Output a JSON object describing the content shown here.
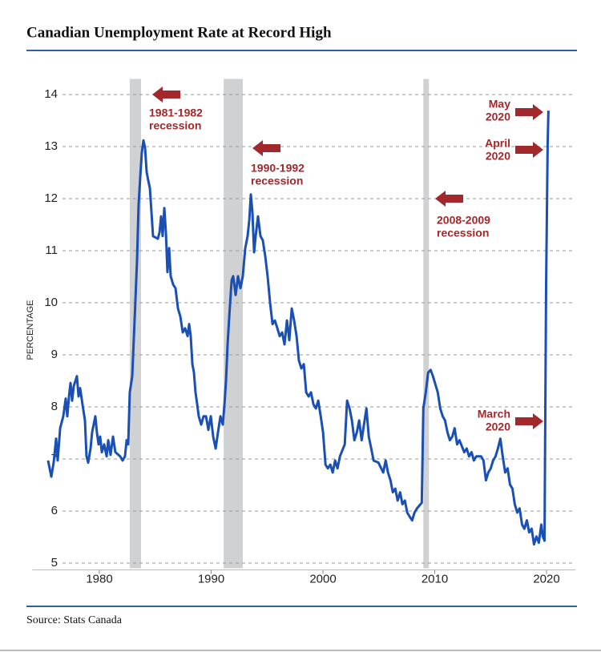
{
  "chart_data": {
    "type": "line",
    "title": "Canadian Unemployment Rate at Record High",
    "y_label": "PERCENTAGE",
    "source": "Source: Stats Canada",
    "color": "#1a4fb3",
    "grid": true,
    "xlim": [
      1974,
      2022.6
    ],
    "xticks": [
      1980,
      1990,
      2000,
      2010,
      2020
    ],
    "ylim": [
      4.9,
      14.3
    ],
    "yticks": [
      5,
      6,
      7,
      8,
      9,
      10,
      11,
      12,
      13,
      14
    ],
    "recessions": [
      [
        1982.72,
        1983.73
      ],
      [
        1991.12,
        1992.83
      ],
      [
        2008.98,
        2009.48
      ]
    ],
    "annotations": [
      [
        "1981-1982",
        "recession"
      ],
      [
        "1990-1992",
        "recession"
      ],
      [
        "2008-2009",
        "recession"
      ],
      [
        "May",
        "2020"
      ],
      [
        "April",
        "2020"
      ],
      [
        "March",
        "2020"
      ]
    ],
    "x": [
      1975.41,
      1975.7,
      1975.91,
      1976.13,
      1976.27,
      1976.49,
      1976.77,
      1976.99,
      1977.13,
      1977.28,
      1977.42,
      1977.56,
      1977.71,
      1977.99,
      1978.14,
      1978.28,
      1978.49,
      1978.71,
      1978.85,
      1979.0,
      1979.21,
      1979.35,
      1979.64,
      1979.78,
      1979.93,
      1980.07,
      1980.22,
      1980.43,
      1980.65,
      1980.79,
      1981.0,
      1981.22,
      1981.43,
      1981.86,
      1982.08,
      1982.29,
      1982.44,
      1982.58,
      1982.72,
      1982.94,
      1983.15,
      1983.37,
      1983.51,
      1983.66,
      1983.8,
      1983.94,
      1984.09,
      1984.23,
      1984.37,
      1984.52,
      1984.66,
      1984.8,
      1985.23,
      1985.38,
      1985.52,
      1985.66,
      1985.81,
      1985.95,
      1986.09,
      1986.24,
      1986.38,
      1986.6,
      1986.81,
      1987.03,
      1987.24,
      1987.46,
      1987.67,
      1987.89,
      1988.03,
      1988.17,
      1988.32,
      1988.46,
      1988.6,
      1988.75,
      1988.89,
      1989.11,
      1989.32,
      1989.54,
      1989.75,
      1989.97,
      1990.18,
      1990.4,
      1990.61,
      1990.83,
      1991.04,
      1991.19,
      1991.33,
      1991.47,
      1991.62,
      1991.83,
      1991.97,
      1992.19,
      1992.4,
      1992.62,
      1992.83,
      1993.05,
      1993.26,
      1993.41,
      1993.55,
      1993.69,
      1993.84,
      1993.98,
      1994.19,
      1994.41,
      1994.62,
      1994.84,
      1995.05,
      1995.27,
      1995.49,
      1995.7,
      1995.92,
      1996.13,
      1996.35,
      1996.56,
      1996.78,
      1996.99,
      1997.21,
      1997.42,
      1997.64,
      1997.85,
      1998.07,
      1998.29,
      1998.5,
      1998.72,
      1998.93,
      1999.15,
      1999.37,
      1999.58,
      1999.8,
      2000.01,
      2000.23,
      2000.44,
      2000.66,
      2000.87,
      2001.09,
      2001.3,
      2001.52,
      2001.95,
      2002.16,
      2002.38,
      2002.59,
      2002.81,
      2003.03,
      2003.24,
      2003.46,
      2003.67,
      2003.89,
      2004.1,
      2004.32,
      2004.53,
      2004.96,
      2005.39,
      2005.61,
      2005.82,
      2006.04,
      2006.25,
      2006.47,
      2006.68,
      2006.9,
      2007.11,
      2007.33,
      2007.54,
      2007.76,
      2007.98,
      2008.19,
      2008.41,
      2008.84,
      2008.98,
      2009.2,
      2009.41,
      2009.63,
      2009.84,
      2010.06,
      2010.27,
      2010.49,
      2010.71,
      2010.92,
      2011.14,
      2011.35,
      2011.57,
      2011.78,
      2012.0,
      2012.21,
      2012.64,
      2012.86,
      2013.07,
      2013.29,
      2013.5,
      2013.72,
      2014.15,
      2014.36,
      2014.58,
      2014.79,
      2015.01,
      2015.22,
      2015.44,
      2015.65,
      2015.87,
      2016.08,
      2016.3,
      2016.52,
      2016.73,
      2016.95,
      2017.16,
      2017.38,
      2017.59,
      2017.81,
      2018.02,
      2018.24,
      2018.45,
      2018.67,
      2018.88,
      2019.1,
      2019.31,
      2019.53,
      2019.67,
      2019.82,
      2019.96,
      2020.1,
      2020.17
    ],
    "values": [
      6.97,
      6.66,
      6.93,
      7.39,
      6.97,
      7.59,
      7.82,
      8.16,
      7.82,
      8.2,
      8.46,
      8.12,
      8.4,
      8.59,
      8.2,
      8.36,
      8.05,
      7.74,
      7.05,
      6.93,
      7.2,
      7.51,
      7.82,
      7.51,
      7.28,
      7.43,
      7.13,
      7.28,
      7.05,
      7.36,
      7.08,
      7.43,
      7.13,
      7.05,
      6.97,
      7.05,
      7.36,
      7.28,
      8.28,
      8.59,
      9.66,
      10.82,
      11.89,
      12.43,
      12.89,
      13.12,
      12.97,
      12.51,
      12.35,
      12.2,
      11.74,
      11.28,
      11.23,
      11.35,
      11.66,
      11.28,
      11.82,
      11.35,
      10.59,
      11.05,
      10.51,
      10.35,
      10.28,
      9.89,
      9.74,
      9.43,
      9.51,
      9.36,
      9.59,
      9.36,
      8.82,
      8.66,
      8.28,
      8.05,
      7.82,
      7.66,
      7.82,
      7.82,
      7.56,
      7.82,
      7.43,
      7.2,
      7.51,
      7.82,
      7.66,
      8.05,
      8.51,
      9.2,
      9.74,
      10.43,
      10.51,
      10.15,
      10.51,
      10.28,
      10.51,
      11.05,
      11.28,
      11.59,
      12.08,
      11.74,
      10.97,
      11.28,
      11.66,
      11.28,
      11.2,
      10.89,
      10.51,
      10.0,
      9.59,
      9.66,
      9.51,
      9.36,
      9.43,
      9.2,
      9.66,
      9.28,
      9.89,
      9.66,
      9.36,
      8.89,
      8.74,
      8.82,
      8.28,
      8.2,
      8.28,
      8.05,
      7.97,
      8.12,
      7.82,
      7.51,
      6.89,
      6.82,
      6.89,
      6.74,
      6.97,
      6.82,
      7.05,
      7.28,
      8.12,
      7.97,
      7.74,
      7.36,
      7.51,
      7.74,
      7.36,
      7.66,
      7.97,
      7.43,
      7.2,
      6.97,
      6.93,
      6.74,
      6.97,
      6.74,
      6.59,
      6.36,
      6.43,
      6.2,
      6.36,
      6.13,
      6.2,
      5.97,
      5.89,
      5.82,
      5.97,
      6.05,
      6.16,
      7.97,
      8.28,
      8.66,
      8.71,
      8.59,
      8.43,
      8.28,
      7.97,
      7.82,
      7.74,
      7.51,
      7.36,
      7.43,
      7.59,
      7.28,
      7.36,
      7.13,
      7.2,
      7.05,
      7.13,
      6.97,
      7.05,
      7.05,
      6.97,
      6.59,
      6.74,
      6.82,
      6.97,
      7.05,
      7.2,
      7.39,
      7.05,
      6.74,
      6.82,
      6.51,
      6.43,
      6.13,
      5.97,
      6.05,
      5.74,
      5.66,
      5.82,
      5.59,
      5.66,
      5.36,
      5.51,
      5.39,
      5.74,
      5.51,
      5.43,
      10.28,
      13.05,
      13.69
    ]
  }
}
